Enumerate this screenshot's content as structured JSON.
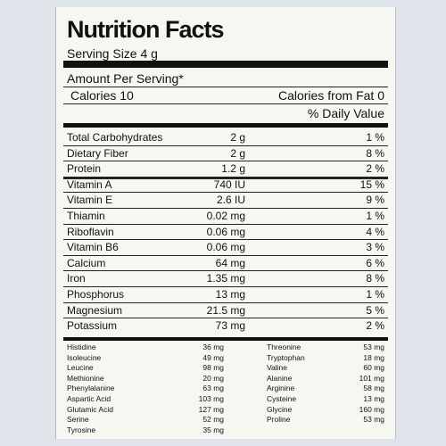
{
  "header": {
    "title": "Nutrition Facts",
    "serving_size": "Serving Size 4 g",
    "amount_per_serving": "Amount Per Serving*",
    "calories": "Calories 10",
    "calories_from_fat": "Calories from Fat 0",
    "daily_value": "% Daily Value"
  },
  "nutrients": [
    [
      "Total Carbohydrates",
      "2 g",
      "1 %"
    ],
    [
      "Dietary Fiber",
      "2 g",
      "8 %"
    ],
    [
      "Protein",
      "1.2 g",
      "2 %"
    ],
    [
      "Vitamin A",
      "740 IU",
      "15 %"
    ],
    [
      "Vitamin E",
      "2.6 IU",
      "9 %"
    ],
    [
      "Thiamin",
      "0.02 mg",
      "1 %"
    ],
    [
      "Riboflavin",
      "0.06 mg",
      "4 %"
    ],
    [
      "Vitamin B6",
      "0.06 mg",
      "3 %"
    ],
    [
      "Calcium",
      "64 mg",
      "6 %"
    ],
    [
      "Iron",
      "1.35 mg",
      "8 %"
    ],
    [
      "Phosphorus",
      "13 mg",
      "1 %"
    ],
    [
      "Magnesium",
      "21.5 mg",
      "5 %"
    ],
    [
      "Potassium",
      "73 mg",
      "2 %"
    ]
  ],
  "amino_left": [
    [
      "Histidine",
      "36 mg"
    ],
    [
      "Isoleucine",
      "49 mg"
    ],
    [
      "Leucine",
      "98 mg"
    ],
    [
      "Methionine",
      "20 mg"
    ],
    [
      "Phenylalanine",
      "63 mg"
    ],
    [
      "Aspartic Acid",
      "103 mg"
    ],
    [
      "Glutamic Acid",
      "127 mg"
    ],
    [
      "Serine",
      "52 mg"
    ],
    [
      "Tyrosine",
      "35 mg"
    ]
  ],
  "amino_right": [
    [
      "Threonine",
      "53 mg"
    ],
    [
      "Tryptophan",
      "18 mg"
    ],
    [
      "Valine",
      "60 mg"
    ],
    [
      "Alanine",
      "101 mg"
    ],
    [
      "Arginine",
      "58 mg"
    ],
    [
      "Cysteine",
      "13 mg"
    ],
    [
      "Glycine",
      "160 mg"
    ],
    [
      "Proline",
      "53 mg"
    ]
  ]
}
